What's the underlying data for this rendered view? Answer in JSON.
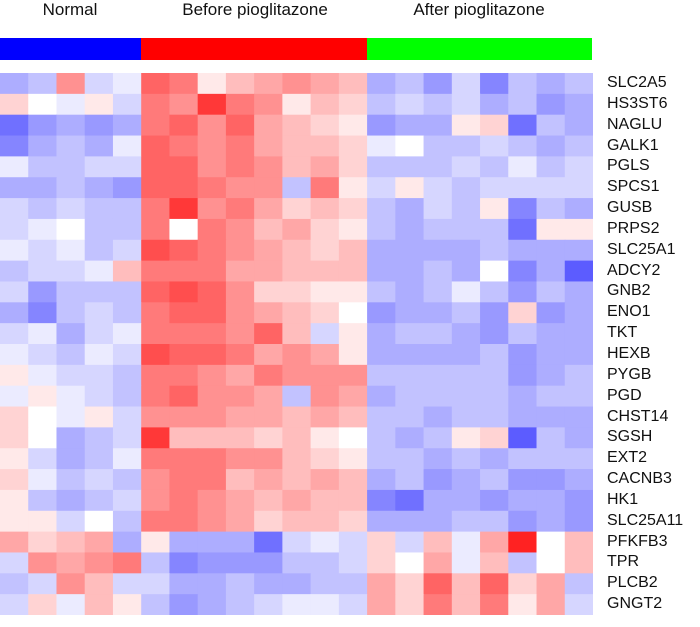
{
  "chart_data": {
    "type": "heatmap",
    "groups": [
      {
        "name": "Normal",
        "color": "#0000ff",
        "columns": 5
      },
      {
        "name": "Before pioglitazone",
        "color": "#ff0000",
        "columns": 8
      },
      {
        "name": "After pioglitazone",
        "color": "#00ff00",
        "columns": 8
      }
    ],
    "rows": [
      "SLC2A5",
      "HS3ST6",
      "NAGLU",
      "GALK1",
      "PGLS",
      "SPCS1",
      "GUSB",
      "PRPS2",
      "SLC25A1",
      "ADCY2",
      "GNB2",
      "ENO1",
      "TKT",
      "HEXB",
      "PYGB",
      "PGD",
      "CHST14",
      "SGSH",
      "EXT2",
      "CACNB3",
      "HK1",
      "SLC25A11",
      "PFKFB3",
      "TPR",
      "PLCB2",
      "GNGT2"
    ],
    "color_scale": {
      "low": "#3333ff",
      "mid": "#ffffff",
      "high": "#ff2222",
      "range": [
        -1,
        1
      ]
    },
    "values": [
      [
        -0.4,
        -0.3,
        0.5,
        -0.2,
        -0.1,
        0.7,
        0.6,
        0.1,
        0.3,
        0.4,
        0.5,
        0.4,
        0.3,
        -0.4,
        -0.3,
        -0.5,
        -0.2,
        -0.6,
        -0.3,
        -0.4,
        -0.3
      ],
      [
        0.2,
        0.0,
        -0.1,
        0.1,
        -0.2,
        0.6,
        0.5,
        0.9,
        0.6,
        0.5,
        0.1,
        0.3,
        0.2,
        -0.3,
        -0.2,
        -0.3,
        -0.2,
        -0.4,
        -0.3,
        -0.5,
        -0.4
      ],
      [
        -0.7,
        -0.5,
        -0.4,
        -0.5,
        -0.4,
        0.6,
        0.7,
        0.5,
        0.7,
        0.4,
        0.3,
        0.2,
        0.1,
        -0.5,
        -0.4,
        -0.4,
        0.1,
        0.2,
        -0.7,
        -0.3,
        -0.4
      ],
      [
        -0.6,
        -0.4,
        -0.3,
        -0.4,
        -0.1,
        0.7,
        0.6,
        0.5,
        0.6,
        0.4,
        0.3,
        0.3,
        0.2,
        -0.1,
        0.0,
        -0.3,
        -0.3,
        -0.2,
        -0.3,
        -0.4,
        -0.3
      ],
      [
        -0.1,
        -0.3,
        -0.3,
        -0.2,
        -0.2,
        0.7,
        0.7,
        0.5,
        0.6,
        0.5,
        0.3,
        0.4,
        0.2,
        -0.3,
        -0.3,
        -0.3,
        -0.2,
        -0.3,
        -0.1,
        -0.3,
        -0.2
      ],
      [
        -0.4,
        -0.4,
        -0.3,
        -0.4,
        -0.5,
        0.7,
        0.7,
        0.6,
        0.5,
        0.5,
        -0.3,
        0.6,
        0.1,
        -0.2,
        0.1,
        -0.2,
        -0.3,
        -0.2,
        -0.2,
        -0.2,
        -0.2
      ],
      [
        -0.2,
        -0.3,
        -0.2,
        -0.3,
        -0.3,
        0.6,
        0.9,
        0.5,
        0.6,
        0.4,
        0.2,
        0.3,
        0.2,
        -0.3,
        -0.4,
        -0.2,
        -0.3,
        0.1,
        -0.6,
        -0.3,
        -0.4
      ],
      [
        -0.2,
        -0.1,
        0.0,
        -0.3,
        -0.3,
        0.6,
        0.0,
        0.6,
        0.5,
        0.3,
        0.4,
        0.2,
        0.1,
        -0.3,
        -0.4,
        -0.3,
        -0.3,
        -0.3,
        -0.7,
        0.1,
        0.1
      ],
      [
        -0.1,
        -0.2,
        -0.1,
        -0.3,
        -0.2,
        0.8,
        0.7,
        0.6,
        0.5,
        0.4,
        0.3,
        0.2,
        0.3,
        -0.4,
        -0.4,
        -0.4,
        -0.4,
        -0.3,
        -0.4,
        -0.4,
        -0.4
      ],
      [
        -0.3,
        -0.2,
        -0.2,
        -0.1,
        0.3,
        0.6,
        0.6,
        0.6,
        0.4,
        0.4,
        0.3,
        0.3,
        0.3,
        -0.4,
        -0.4,
        -0.3,
        -0.4,
        0.0,
        -0.6,
        -0.4,
        -0.8
      ],
      [
        -0.2,
        -0.5,
        -0.3,
        -0.3,
        -0.3,
        0.7,
        0.8,
        0.7,
        0.5,
        0.2,
        0.2,
        0.1,
        0.1,
        -0.3,
        -0.4,
        -0.3,
        -0.1,
        -0.3,
        -0.5,
        -0.3,
        -0.4
      ],
      [
        -0.4,
        -0.6,
        -0.3,
        -0.2,
        -0.3,
        0.6,
        0.7,
        0.7,
        0.5,
        0.4,
        0.3,
        0.2,
        0.0,
        -0.5,
        -0.4,
        -0.4,
        -0.3,
        -0.5,
        0.2,
        -0.5,
        -0.4
      ],
      [
        -0.2,
        -0.1,
        -0.4,
        -0.2,
        -0.1,
        0.6,
        0.6,
        0.6,
        0.5,
        0.7,
        0.3,
        -0.2,
        0.1,
        -0.4,
        -0.3,
        -0.3,
        -0.4,
        -0.5,
        -0.3,
        -0.4,
        -0.4
      ],
      [
        -0.1,
        -0.2,
        -0.3,
        -0.1,
        -0.2,
        0.8,
        0.7,
        0.7,
        0.6,
        0.4,
        0.5,
        0.4,
        0.1,
        -0.4,
        -0.4,
        -0.4,
        -0.4,
        -0.3,
        -0.5,
        -0.4,
        -0.4
      ],
      [
        0.1,
        -0.1,
        -0.2,
        -0.2,
        -0.3,
        0.6,
        0.6,
        0.5,
        0.4,
        0.6,
        0.5,
        0.5,
        0.5,
        -0.3,
        -0.3,
        -0.3,
        -0.3,
        -0.3,
        -0.5,
        -0.4,
        -0.3
      ],
      [
        -0.1,
        0.1,
        -0.1,
        -0.2,
        -0.3,
        0.6,
        0.7,
        0.5,
        0.5,
        0.4,
        -0.3,
        0.5,
        0.4,
        -0.4,
        -0.3,
        -0.3,
        -0.3,
        -0.3,
        -0.4,
        -0.3,
        -0.3
      ],
      [
        0.2,
        0.0,
        -0.1,
        0.1,
        -0.2,
        0.5,
        0.5,
        0.5,
        0.4,
        0.4,
        0.3,
        0.4,
        0.3,
        -0.3,
        -0.3,
        -0.4,
        -0.3,
        -0.3,
        -0.4,
        -0.4,
        -0.4
      ],
      [
        0.2,
        0.0,
        -0.4,
        -0.3,
        -0.2,
        0.9,
        0.3,
        0.3,
        0.3,
        0.2,
        0.3,
        0.1,
        0.0,
        -0.3,
        -0.4,
        -0.3,
        0.1,
        0.2,
        -0.8,
        -0.3,
        -0.4
      ],
      [
        0.1,
        -0.2,
        -0.4,
        -0.3,
        -0.1,
        0.6,
        0.6,
        0.6,
        0.5,
        0.5,
        0.3,
        0.2,
        0.1,
        -0.3,
        -0.3,
        -0.4,
        -0.3,
        -0.4,
        -0.3,
        -0.3,
        -0.3
      ],
      [
        0.2,
        -0.1,
        -0.3,
        -0.2,
        -0.3,
        0.5,
        0.6,
        0.6,
        0.3,
        0.4,
        0.3,
        0.4,
        0.3,
        -0.4,
        -0.3,
        -0.5,
        -0.4,
        -0.3,
        -0.5,
        -0.5,
        -0.4
      ],
      [
        0.1,
        -0.3,
        -0.4,
        -0.3,
        -0.2,
        0.5,
        0.6,
        0.5,
        0.4,
        0.3,
        0.4,
        0.3,
        0.3,
        -0.6,
        -0.7,
        -0.4,
        -0.4,
        -0.5,
        -0.4,
        -0.4,
        -0.5
      ],
      [
        0.1,
        0.1,
        -0.2,
        0.0,
        -0.3,
        0.6,
        0.6,
        0.5,
        0.4,
        0.2,
        0.3,
        0.3,
        0.2,
        -0.4,
        -0.4,
        -0.4,
        -0.3,
        -0.3,
        -0.5,
        -0.4,
        -0.5
      ],
      [
        0.4,
        0.2,
        0.3,
        0.4,
        -0.4,
        0.1,
        -0.4,
        -0.4,
        -0.4,
        -0.7,
        -0.2,
        -0.1,
        -0.2,
        0.2,
        -0.2,
        0.3,
        -0.1,
        0.4,
        1.0,
        0.0,
        0.3
      ],
      [
        -0.2,
        0.5,
        0.4,
        0.5,
        0.6,
        -0.3,
        -0.6,
        -0.5,
        -0.5,
        -0.5,
        -0.3,
        -0.3,
        -0.2,
        0.2,
        0.0,
        0.4,
        -0.1,
        0.3,
        -0.3,
        0.0,
        0.3
      ],
      [
        -0.3,
        -0.2,
        0.5,
        0.3,
        -0.2,
        -0.2,
        -0.4,
        -0.4,
        -0.3,
        -0.4,
        -0.4,
        -0.3,
        -0.3,
        0.4,
        0.2,
        0.7,
        0.3,
        0.7,
        0.2,
        0.4,
        -0.3
      ],
      [
        -0.2,
        0.2,
        -0.1,
        0.3,
        0.1,
        -0.3,
        -0.5,
        -0.4,
        -0.3,
        -0.2,
        -0.1,
        -0.1,
        -0.2,
        0.4,
        0.2,
        0.6,
        0.3,
        0.6,
        0.1,
        0.4,
        -0.2
      ]
    ]
  }
}
